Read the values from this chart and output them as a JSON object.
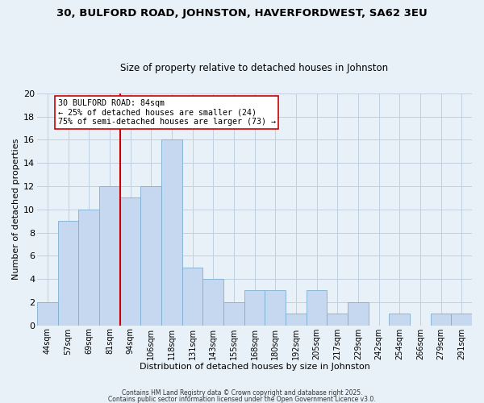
{
  "title_line1": "30, BULFORD ROAD, JOHNSTON, HAVERFORDWEST, SA62 3EU",
  "title_line2": "Size of property relative to detached houses in Johnston",
  "xlabel": "Distribution of detached houses by size in Johnston",
  "ylabel": "Number of detached properties",
  "categories": [
    "44sqm",
    "57sqm",
    "69sqm",
    "81sqm",
    "94sqm",
    "106sqm",
    "118sqm",
    "131sqm",
    "143sqm",
    "155sqm",
    "168sqm",
    "180sqm",
    "192sqm",
    "205sqm",
    "217sqm",
    "229sqm",
    "242sqm",
    "254sqm",
    "266sqm",
    "279sqm",
    "291sqm"
  ],
  "values": [
    2,
    9,
    10,
    12,
    11,
    12,
    16,
    5,
    4,
    2,
    3,
    3,
    1,
    3,
    1,
    2,
    0,
    1,
    0,
    1,
    1
  ],
  "bar_color": "#c5d8f0",
  "bar_edge_color": "#7eafd4",
  "vline_x_index": 3,
  "vline_color": "#cc0000",
  "annotation_text": "30 BULFORD ROAD: 84sqm\n← 25% of detached houses are smaller (24)\n75% of semi-detached houses are larger (73) →",
  "annotation_box_color": "#ffffff",
  "annotation_box_edge_color": "#cc0000",
  "grid_color": "#c0d0e0",
  "background_color": "#e8f0f8",
  "ylim": [
    0,
    20
  ],
  "yticks": [
    0,
    2,
    4,
    6,
    8,
    10,
    12,
    14,
    16,
    18,
    20
  ],
  "footer_line1": "Contains HM Land Registry data © Crown copyright and database right 2025.",
  "footer_line2": "Contains public sector information licensed under the Open Government Licence v3.0."
}
